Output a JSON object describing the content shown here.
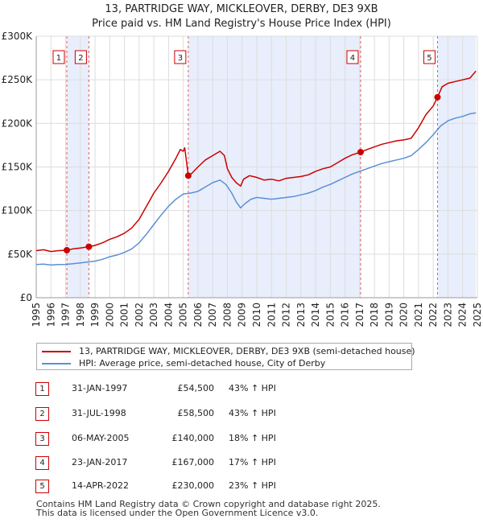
{
  "title_line1": "13, PARTRIDGE WAY, MICKLEOVER, DERBY, DE3 9XB",
  "title_line2": "Price paid vs. HM Land Registry's House Price Index (HPI)",
  "colors": {
    "property": "#cc0000",
    "hpi": "#5b8fd6",
    "shade": "#e8eefb",
    "grid": "#dddddd",
    "vline": "#e06060"
  },
  "chart_data": {
    "type": "line",
    "title": "13, PARTRIDGE WAY, MICKLEOVER, DERBY, DE3 9XB",
    "subtitle": "Price paid vs. HM Land Registry's House Price Index (HPI)",
    "xlim": [
      1995,
      2025
    ],
    "ylim": [
      0,
      300000
    ],
    "x_ticks": [
      1995,
      1996,
      1997,
      1998,
      1999,
      2000,
      2001,
      2002,
      2003,
      2004,
      2005,
      2006,
      2007,
      2008,
      2009,
      2010,
      2011,
      2012,
      2013,
      2014,
      2015,
      2016,
      2017,
      2018,
      2019,
      2020,
      2021,
      2022,
      2023,
      2024,
      2025
    ],
    "y_ticks": [
      0,
      50000,
      100000,
      150000,
      200000,
      250000,
      300000
    ],
    "y_tick_labels": [
      "£0",
      "£50K",
      "£100K",
      "£150K",
      "£200K",
      "£250K",
      "£300K"
    ],
    "grid": true,
    "series": [
      {
        "name": "13, PARTRIDGE WAY, MICKLEOVER, DERBY, DE3 9XB (semi-detached house)",
        "color": "#cc0000",
        "x": [
          1995.0,
          1995.5,
          1996.0,
          1996.5,
          1997.08,
          1997.5,
          1998.0,
          1998.58,
          1999.0,
          1999.5,
          2000.0,
          2000.5,
          2001.0,
          2001.5,
          2002.0,
          2002.5,
          2003.0,
          2003.5,
          2004.0,
          2004.5,
          2004.8,
          2005.0,
          2005.1,
          2005.34,
          2005.6,
          2006.0,
          2006.5,
          2007.0,
          2007.5,
          2007.8,
          2008.0,
          2008.3,
          2008.6,
          2008.9,
          2009.1,
          2009.5,
          2010.0,
          2010.5,
          2011.0,
          2011.5,
          2012.0,
          2012.5,
          2013.0,
          2013.5,
          2014.0,
          2014.5,
          2015.0,
          2015.5,
          2016.0,
          2016.5,
          2017.06,
          2017.5,
          2018.0,
          2018.5,
          2019.0,
          2019.5,
          2020.0,
          2020.5,
          2021.0,
          2021.5,
          2022.0,
          2022.29,
          2022.6,
          2023.0,
          2023.5,
          2024.0,
          2024.5,
          2024.9
        ],
        "values": [
          54000,
          55000,
          53000,
          54000,
          54500,
          56000,
          57000,
          58500,
          60000,
          63000,
          67000,
          70000,
          74000,
          80000,
          90000,
          105000,
          120000,
          132000,
          145000,
          160000,
          170000,
          168000,
          172000,
          140000,
          143000,
          150000,
          158000,
          163000,
          168000,
          163000,
          148000,
          138000,
          132000,
          128000,
          136000,
          140000,
          138000,
          135000,
          136000,
          134000,
          137000,
          138000,
          139000,
          141000,
          145000,
          148000,
          150000,
          155000,
          160000,
          164000,
          167000,
          170000,
          173000,
          176000,
          178000,
          180000,
          181000,
          183000,
          195000,
          210000,
          220000,
          230000,
          242000,
          246000,
          248000,
          250000,
          252000,
          260000
        ]
      },
      {
        "name": "HPI: Average price, semi-detached house, City of Derby",
        "color": "#5b8fd6",
        "x": [
          1995.0,
          1995.5,
          1996.0,
          1996.5,
          1997.0,
          1997.5,
          1998.0,
          1998.5,
          1999.0,
          1999.5,
          2000.0,
          2000.5,
          2001.0,
          2001.5,
          2002.0,
          2002.5,
          2003.0,
          2003.5,
          2004.0,
          2004.5,
          2005.0,
          2005.5,
          2006.0,
          2006.5,
          2007.0,
          2007.5,
          2007.9,
          2008.3,
          2008.6,
          2008.9,
          2009.2,
          2009.6,
          2010.0,
          2010.5,
          2011.0,
          2011.5,
          2012.0,
          2012.5,
          2013.0,
          2013.5,
          2014.0,
          2014.5,
          2015.0,
          2015.5,
          2016.0,
          2016.5,
          2017.0,
          2017.5,
          2018.0,
          2018.5,
          2019.0,
          2019.5,
          2020.0,
          2020.5,
          2021.0,
          2021.5,
          2022.0,
          2022.5,
          2023.0,
          2023.5,
          2024.0,
          2024.5,
          2024.9
        ],
        "values": [
          38000,
          38500,
          37500,
          38000,
          38200,
          39000,
          40000,
          41000,
          42000,
          44000,
          47000,
          49000,
          52000,
          56000,
          63000,
          73000,
          84000,
          95000,
          105000,
          113000,
          119000,
          120000,
          122000,
          127000,
          132000,
          135000,
          130000,
          120000,
          110000,
          103000,
          108000,
          113000,
          115000,
          114000,
          113000,
          114000,
          115000,
          116000,
          118000,
          120000,
          123000,
          127000,
          130000,
          134000,
          138000,
          142000,
          145000,
          148000,
          151000,
          154000,
          156000,
          158000,
          160000,
          163000,
          170000,
          178000,
          187000,
          197000,
          203000,
          206000,
          208000,
          211000,
          212000
        ]
      }
    ],
    "sales": [
      {
        "label": "1",
        "x": 1997.08,
        "value": 54500
      },
      {
        "label": "2",
        "x": 1998.58,
        "value": 58500
      },
      {
        "label": "3",
        "x": 2005.34,
        "value": 140000
      },
      {
        "label": "4",
        "x": 2017.06,
        "value": 167000
      },
      {
        "label": "5",
        "x": 2022.29,
        "value": 230000
      }
    ],
    "shaded_ranges": [
      [
        1997.08,
        1998.58
      ],
      [
        2005.34,
        2017.06
      ],
      [
        2022.29,
        2024.9
      ]
    ]
  },
  "legend": {
    "property_label": "13, PARTRIDGE WAY, MICKLEOVER, DERBY, DE3 9XB (semi-detached house)",
    "hpi_label": "HPI: Average price, semi-detached house, City of Derby"
  },
  "sales_table": [
    {
      "num": "1",
      "date": "31-JAN-1997",
      "price": "£54,500",
      "hpi": "43% ↑ HPI"
    },
    {
      "num": "2",
      "date": "31-JUL-1998",
      "price": "£58,500",
      "hpi": "43% ↑ HPI"
    },
    {
      "num": "3",
      "date": "06-MAY-2005",
      "price": "£140,000",
      "hpi": "18% ↑ HPI"
    },
    {
      "num": "4",
      "date": "23-JAN-2017",
      "price": "£167,000",
      "hpi": "17% ↑ HPI"
    },
    {
      "num": "5",
      "date": "14-APR-2022",
      "price": "£230,000",
      "hpi": "23% ↑ HPI"
    }
  ],
  "footer_line1": "Contains HM Land Registry data © Crown copyright and database right 2025.",
  "footer_line2": "This data is licensed under the Open Government Licence v3.0."
}
